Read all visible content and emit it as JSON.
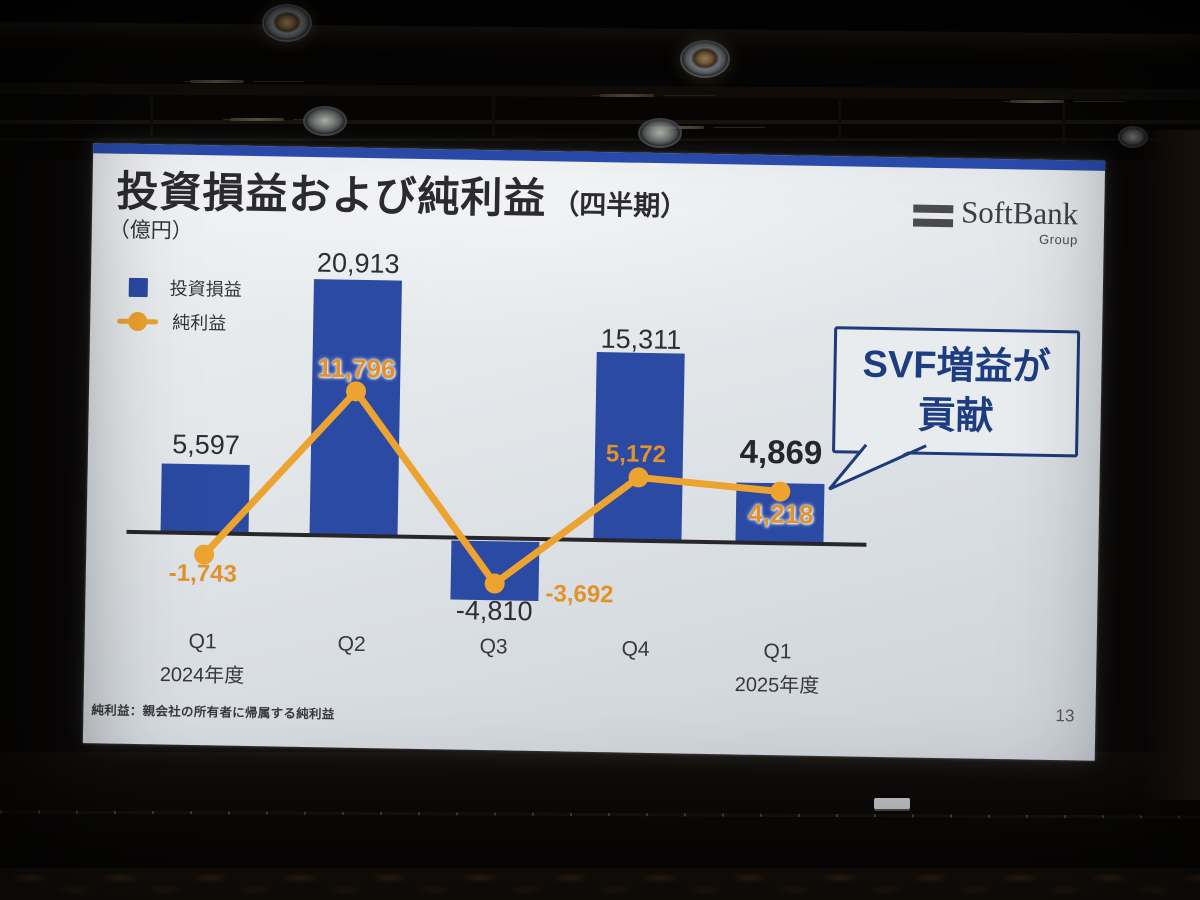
{
  "slide": {
    "title": "投資損益および純利益",
    "title_suffix": "（四半期）",
    "unit_label": "（億円）",
    "logo": {
      "brand": "SoftBank",
      "sub": "Group"
    },
    "legend": {
      "bar_label": "投資損益",
      "line_label": "純利益"
    },
    "callout": {
      "line1": "SVF増益が",
      "line2": "貢献"
    },
    "footnote": "純利益：親会社の所有者に帰属する純利益",
    "page_number": "13"
  },
  "chart_data": {
    "type": "bar",
    "subtype": "combo bar + line, quarterly",
    "title": "投資損益および純利益（四半期）",
    "ylabel": "億円",
    "categories": [
      "Q1",
      "Q2",
      "Q3",
      "Q4",
      "Q1"
    ],
    "category_sublabels": [
      "2024年度",
      "",
      "",
      "",
      "2025年度"
    ],
    "series": [
      {
        "name": "投資損益",
        "type": "bar",
        "color": "#2b4aa3",
        "values": [
          5597,
          20913,
          -4810,
          15311,
          4869
        ],
        "labels": [
          "5,597",
          "20,913",
          "-4,810",
          "15,311",
          "4,869"
        ]
      },
      {
        "name": "純利益",
        "type": "line",
        "color": "#eda32f",
        "values": [
          -1743,
          11796,
          -3692,
          5172,
          4218
        ],
        "labels": [
          "-1,743",
          "11,796",
          "-3,692",
          "5,172",
          "4,218"
        ]
      }
    ],
    "baseline": 0,
    "gridlines": false,
    "legend_position": "top-left",
    "annotation": "SVF増益が貢献"
  },
  "colors": {
    "bar": "#2b4aa3",
    "line": "#eda32f",
    "accent_strip": "#2a4cad",
    "callout_navy": "#1e3a7c",
    "slide_bg": "#e3e7ea"
  }
}
